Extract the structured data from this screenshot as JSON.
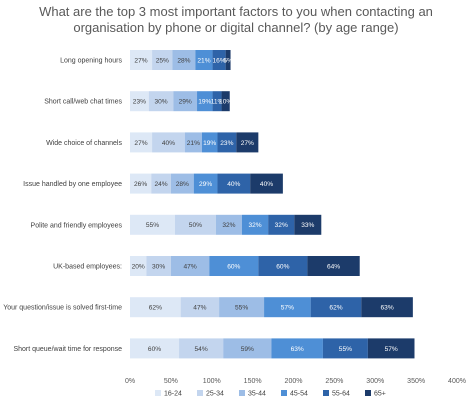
{
  "chart_data": {
    "type": "bar",
    "orientation": "horizontal",
    "stacked": true,
    "title_lines": [
      "What are the top 3 most important factors to you when contacting an",
      "organisation by phone or digital channel? (by age range)"
    ],
    "categories": [
      "Long opening hours",
      "Short call/web chat times",
      "Wide choice of channels",
      "Issue handled by one employee",
      "Polite and friendly employees",
      "UK-based employees:",
      "Your question/issue is solved first-time",
      "Short queue/wait time for response"
    ],
    "series": [
      {
        "name": "16-24",
        "color": "#dde8f6",
        "values": [
          27,
          23,
          27,
          26,
          55,
          20,
          62,
          60
        ]
      },
      {
        "name": "25-34",
        "color": "#c3d5ee",
        "values": [
          25,
          30,
          40,
          24,
          50,
          30,
          47,
          54
        ]
      },
      {
        "name": "35-44",
        "color": "#9dbde6",
        "values": [
          28,
          29,
          21,
          28,
          32,
          47,
          55,
          59
        ]
      },
      {
        "name": "45-54",
        "color": "#4e8fd6",
        "values": [
          21,
          19,
          19,
          29,
          32,
          60,
          57,
          63
        ]
      },
      {
        "name": "55-64",
        "color": "#2e63a8",
        "values": [
          16,
          11,
          23,
          40,
          32,
          60,
          62,
          55
        ]
      },
      {
        "name": "65+",
        "color": "#1c3b6a",
        "values": [
          6,
          10,
          27,
          40,
          33,
          64,
          63,
          57
        ]
      }
    ],
    "xlim": [
      0,
      400
    ],
    "xticks": [
      0,
      50,
      100,
      150,
      200,
      250,
      300,
      350,
      400
    ],
    "tick_suffix": "%",
    "value_suffix": "%",
    "legend_position": "bottom",
    "grid": false
  }
}
